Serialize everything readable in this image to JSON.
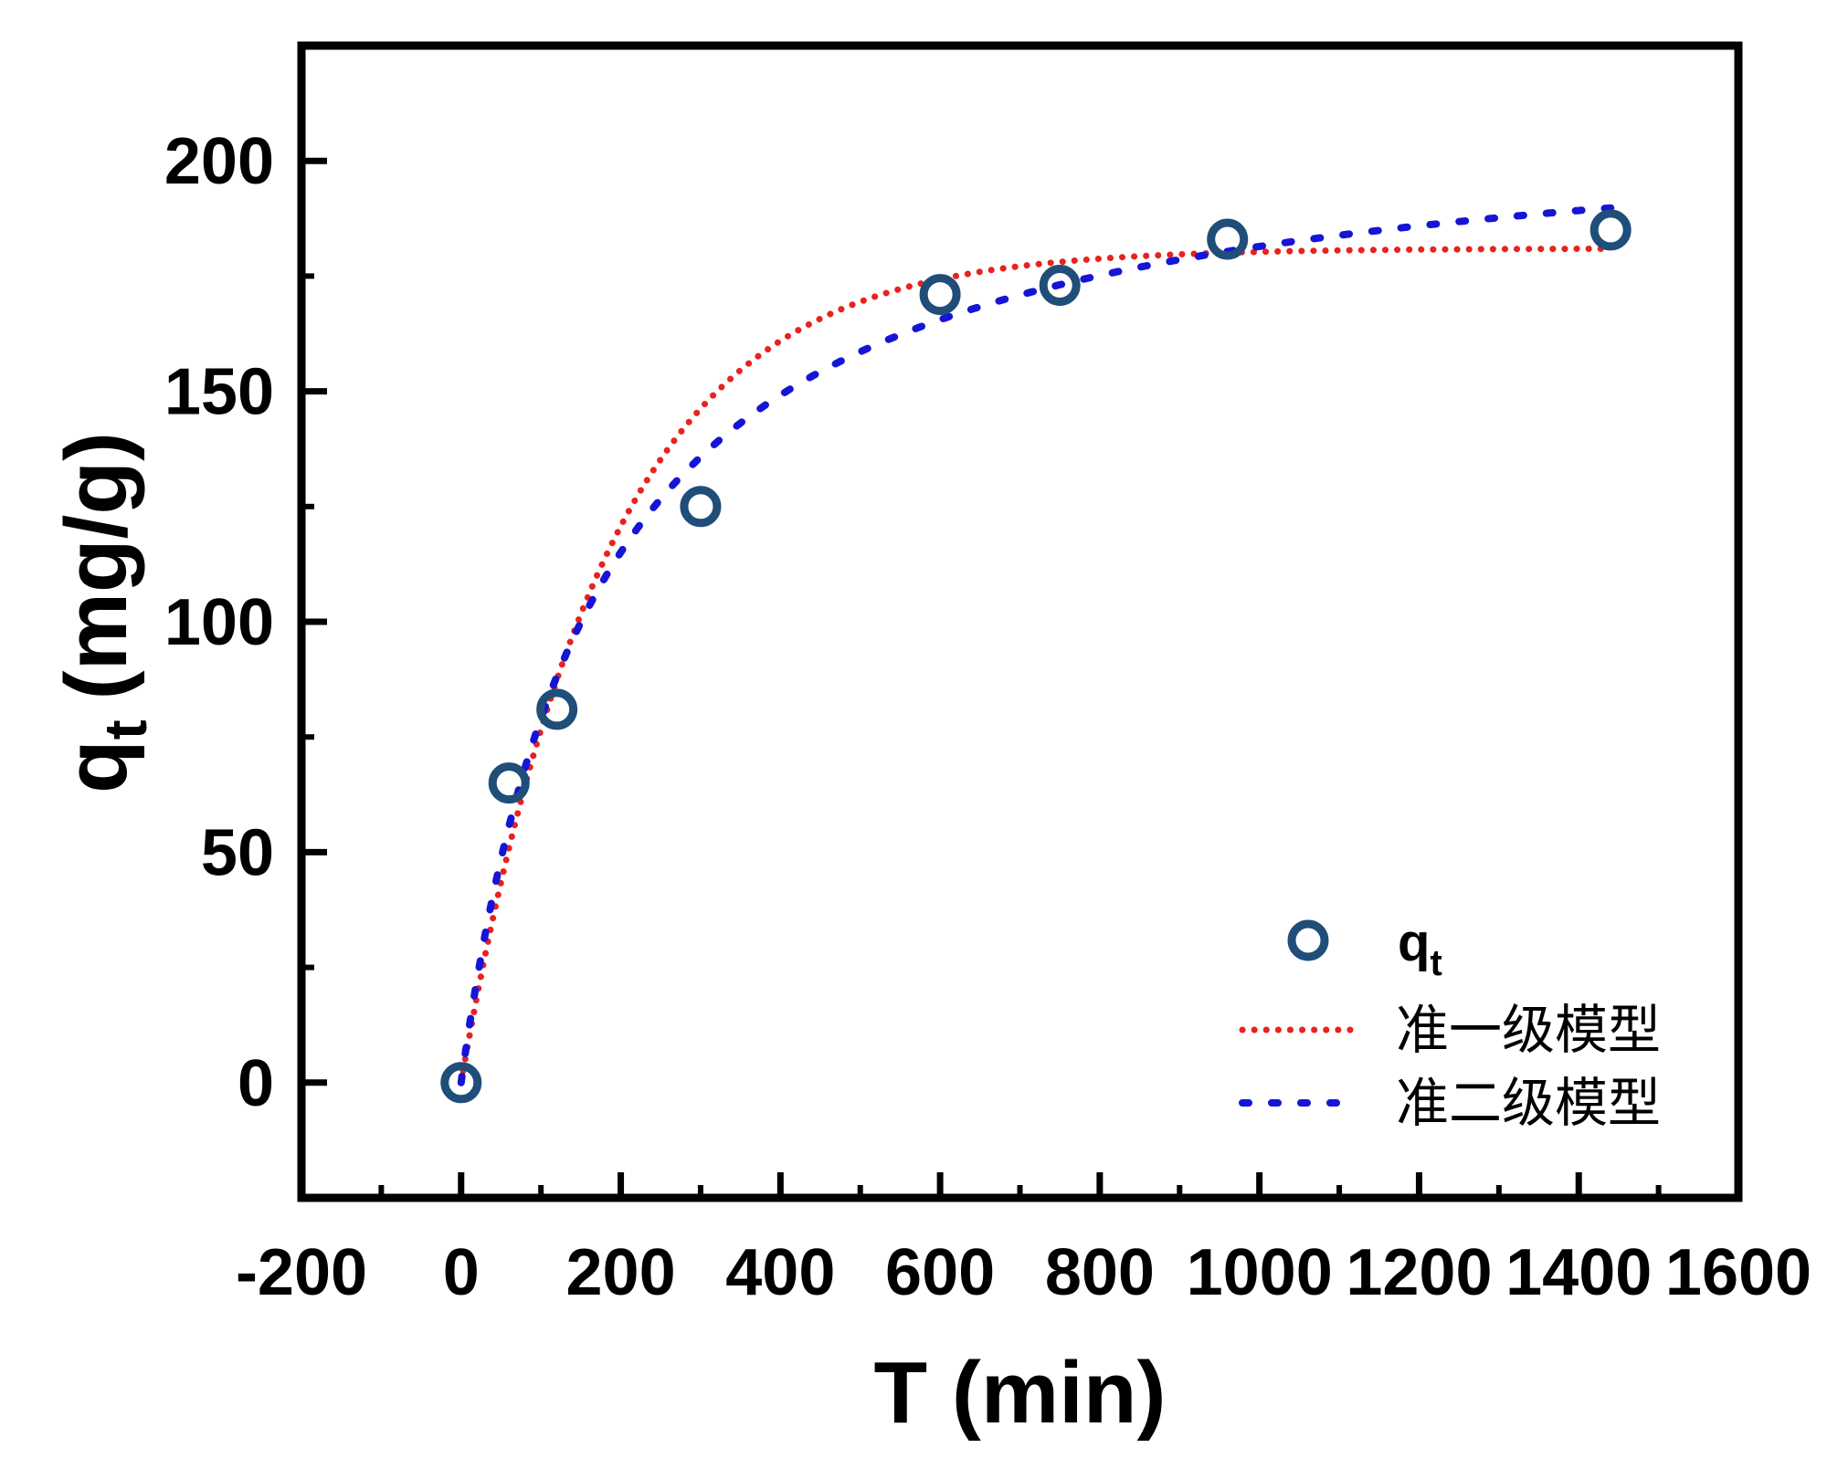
{
  "chart_data": {
    "type": "scatter",
    "title": "",
    "xlabel": "T (min)",
    "ylabel_main": "q",
    "ylabel_sub": "t",
    "ylabel_unit": "(mg/g)",
    "xlim": [
      -200,
      1600
    ],
    "ylim": [
      -25,
      225
    ],
    "xticks": [
      -200,
      0,
      200,
      400,
      600,
      800,
      1000,
      1200,
      1400,
      1600
    ],
    "xtick_labels": [
      "-200",
      "0",
      "200",
      "400",
      "600",
      "800",
      "1000",
      "1200",
      "1400",
      "1600"
    ],
    "yticks": [
      0,
      50,
      100,
      150,
      200
    ],
    "ytick_labels": [
      "0",
      "50",
      "100",
      "150",
      "200"
    ],
    "grid": false,
    "legend_position": "bottom-right",
    "series": [
      {
        "name": "q",
        "name_sub": "t",
        "kind": "scatter",
        "color": "#1f4e79",
        "x": [
          0,
          60,
          120,
          300,
          600,
          750,
          960,
          1440
        ],
        "y": [
          0,
          65,
          81,
          125,
          171,
          173,
          183,
          185
        ]
      },
      {
        "name": "准一级模型",
        "kind": "line",
        "style": "dotted",
        "color": "#e8221f",
        "qe": 181,
        "k": 0.0055,
        "x_range": [
          0,
          1440
        ]
      },
      {
        "name": "准二级模型",
        "kind": "line",
        "style": "dashed",
        "color": "#1515d6",
        "qe": 212,
        "k": 2.8e-05,
        "x_range": [
          0,
          1440
        ]
      }
    ]
  }
}
